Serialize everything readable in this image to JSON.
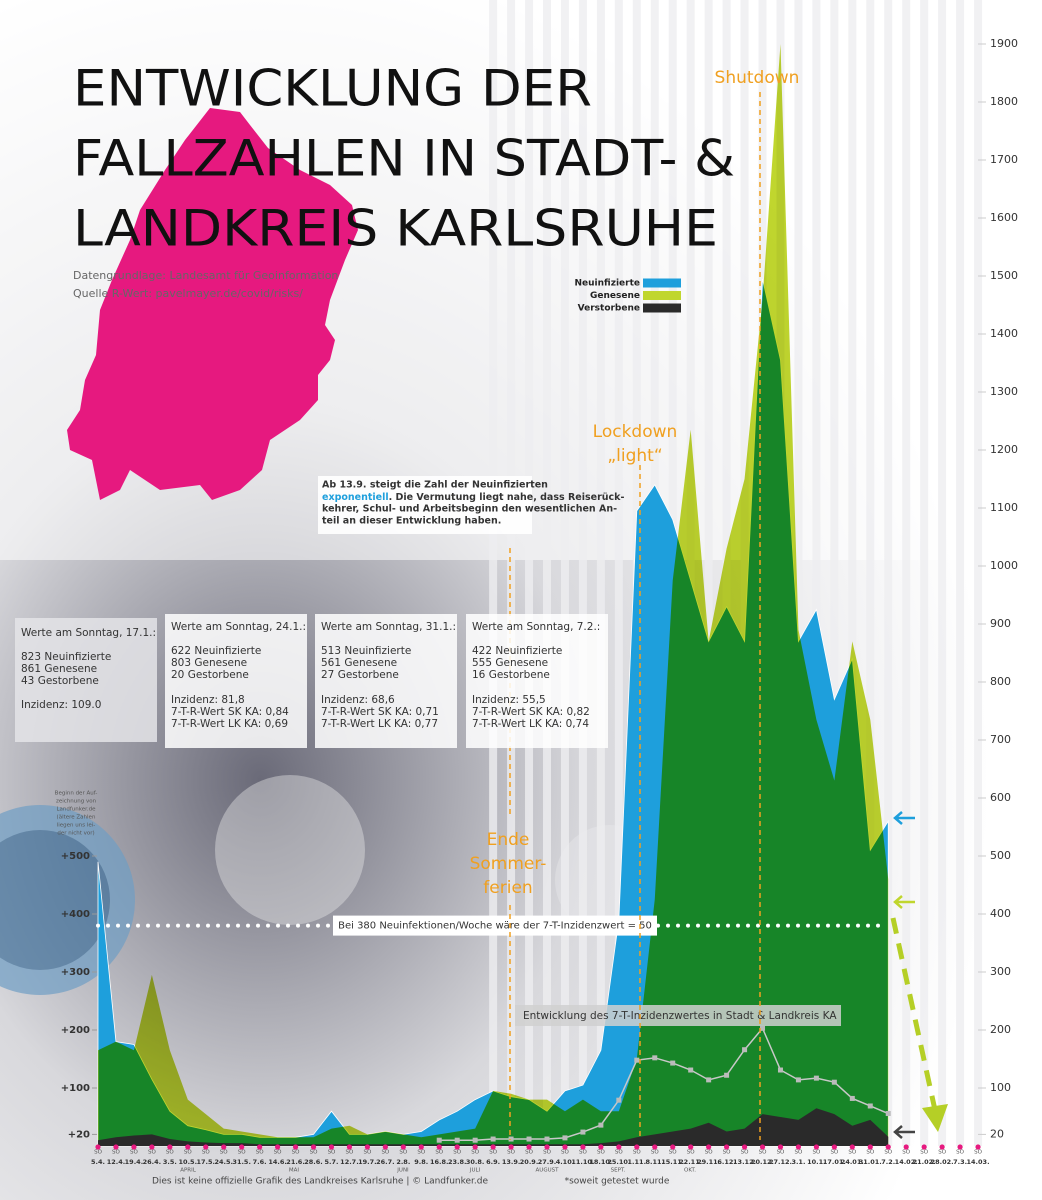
{
  "chart_data": {
    "type": "area",
    "title_lines": [
      "ENTWICKLUNG DER",
      "FALLZAHLEN IN STADT- &",
      "LANDKREIS KARLSRUHE"
    ],
    "sources": [
      "Datengrundlage: Landesamt für Geoinformation",
      "Quelle R-Wert: pavelmayer.de/covid/risks/"
    ],
    "categories": [
      "5.4.",
      "12.4.",
      "19.4.",
      "26.4.",
      "3.5.",
      "10.5.",
      "17.5.",
      "24.5.",
      "31.5.",
      "7.6.",
      "14.6.",
      "21.6.",
      "28.6.",
      "5.7.",
      "12.7.",
      "19.7.",
      "26.7.",
      "2.8.",
      "9.8.",
      "16.8.",
      "23.8.",
      "30.8.",
      "6.9.",
      "13.9.",
      "20.9.",
      "27.9.",
      "4.10.",
      "11.10.",
      "18.10.",
      "25.10.",
      "1.11.",
      "8.11.",
      "15.11.",
      "22.11.",
      "29.11.",
      "6.12.",
      "13.12.",
      "20.12.",
      "27.12.",
      "3.1.",
      "10.1.",
      "17.01.",
      "24.01.",
      "31.01.",
      "7.2.",
      "14.02.",
      "21.02.",
      "28.02.",
      "7.3.",
      "14.03."
    ],
    "weekday_label": "SO",
    "months": [
      "APRIL",
      "MAI",
      "JUNI",
      "JULI",
      "AUGUST",
      "SEPT.",
      "OKT."
    ],
    "series": [
      {
        "name": "Neuinfizierte",
        "color": "#1e9fdc",
        "values": [
          490,
          180,
          175,
          115,
          60,
          35,
          28,
          20,
          20,
          15,
          15,
          15,
          20,
          60,
          20,
          20,
          25,
          20,
          25,
          45,
          60,
          80,
          95,
          85,
          80,
          60,
          95,
          105,
          165,
          390,
          1095,
          1140,
          1080,
          975,
          870,
          930,
          870,
          1495,
          1355,
          870,
          925,
          770,
          840,
          510,
          560,
          null,
          null,
          null,
          null,
          null
        ]
      },
      {
        "name": "Genesene",
        "color": "#c0d62e",
        "values": [
          165,
          180,
          165,
          295,
          165,
          80,
          55,
          30,
          25,
          20,
          15,
          15,
          15,
          30,
          35,
          20,
          25,
          20,
          15,
          20,
          25,
          30,
          95,
          90,
          80,
          80,
          60,
          80,
          60,
          60,
          150,
          425,
          975,
          1235,
          870,
          1030,
          1150,
          1460,
          1900,
          890,
          735,
          630,
          870,
          735,
          460,
          null,
          null,
          null,
          null,
          null
        ]
      },
      {
        "name": "Verstorbene",
        "color": "#2a2a2a",
        "values": [
          10,
          15,
          18,
          20,
          12,
          8,
          6,
          5,
          5,
          3,
          3,
          3,
          3,
          3,
          3,
          3,
          3,
          3,
          3,
          3,
          3,
          3,
          3,
          3,
          3,
          3,
          3,
          3,
          5,
          8,
          15,
          20,
          25,
          30,
          40,
          25,
          30,
          55,
          50,
          45,
          65,
          55,
          35,
          45,
          16,
          null,
          null,
          null,
          null,
          null
        ]
      },
      {
        "name": "Entwicklung des 7-T-Inzidenzwertes in Stadt & Landkreis KA",
        "type": "line",
        "color": "#c8c8c8",
        "values": [
          null,
          null,
          null,
          null,
          null,
          null,
          null,
          null,
          null,
          null,
          null,
          null,
          null,
          null,
          null,
          null,
          null,
          null,
          null,
          10,
          10,
          10,
          12,
          12,
          12,
          12,
          14,
          24,
          36,
          79,
          148,
          152,
          143,
          131,
          114,
          122,
          166,
          203,
          131,
          114,
          117,
          110,
          82,
          69,
          56,
          null,
          null,
          null,
          null,
          null
        ]
      }
    ],
    "ylim": [
      0,
      1900
    ],
    "yticks": [
      20,
      100,
      200,
      300,
      400,
      500,
      600,
      700,
      800,
      900,
      1000,
      1100,
      1200,
      1300,
      1400,
      1500,
      1600,
      1700,
      1800,
      1900
    ],
    "y_left_ticks": [
      {
        "value": 20,
        "label": "+20"
      },
      {
        "value": 100,
        "label": "+100"
      },
      {
        "value": 200,
        "label": "+200"
      },
      {
        "value": 300,
        "label": "+300"
      },
      {
        "value": 400,
        "label": "+400"
      },
      {
        "value": 500,
        "label": "+500"
      }
    ],
    "threshold": {
      "value": 380,
      "label": "Bei 380 Neuinfektionen/Woche wäre der 7-T-Inzidenzwert = 50"
    },
    "annotations": [
      {
        "lines": [
          "Shutdown"
        ]
      },
      {
        "lines": [
          "Lockdown",
          "„light“"
        ]
      },
      {
        "lines": [
          "Ende",
          "Sommer-",
          "ferien"
        ]
      }
    ],
    "note_box": {
      "lines": [
        "Ab 13.9. steigt die Zahl der Neuinfizierten"
      ],
      "highlight": "exponentiell",
      "rest": ". Die Vermutung liegt nahe, dass Reiserück-",
      "more_lines": [
        "kehrer, Schul- und Arbeitsbeginn den wesentlichen An-",
        "teil an dieser Entwicklung haben."
      ]
    },
    "start_note": [
      "Beginn der Auf-",
      "zeichnung von",
      "Landfunker.de",
      "(ältere Zahlen",
      "liegen uns lei-",
      "der nicht vor)"
    ],
    "info_boxes": [
      {
        "heading": "Werte am Sonntag, 17.1.:",
        "counts": [
          "823 Neuinfizierte",
          "861 Genesene",
          "43 Gestorbene"
        ],
        "stats": [
          "Inzidenz: 109.0"
        ]
      },
      {
        "heading": "Werte am Sonntag, 24.1.:",
        "counts": [
          "622 Neuinfizierte",
          "803 Genesene",
          "20 Gestorbene"
        ],
        "stats": [
          "Inzidenz: 81,8",
          "7-T-R-Wert SK KA: 0,84",
          "7-T-R-Wert LK KA: 0,69"
        ]
      },
      {
        "heading": "Werte am Sonntag, 31.1.:",
        "counts": [
          "513 Neuinfizierte",
          "561 Genesene",
          "27 Gestorbene"
        ],
        "stats": [
          "Inzidenz: 68,6",
          "7-T-R-Wert SK KA: 0,71",
          "7-T-R-Wert LK KA: 0,77"
        ]
      },
      {
        "heading": "Werte am Sonntag, 7.2.:",
        "counts": [
          "422 Neuinfizierte",
          "555 Genesene",
          "16 Gestorbene"
        ],
        "stats": [
          "Inzidenz: 55,5",
          "7-T-R-Wert SK KA: 0,82",
          "7-T-R-Wert LK KA: 0,74"
        ]
      }
    ],
    "footer": [
      "Dies ist keine offizielle Grafik des Landkreises Karlsruhe | © Landfunker.de",
      "*soweit getestet wurde"
    ]
  }
}
